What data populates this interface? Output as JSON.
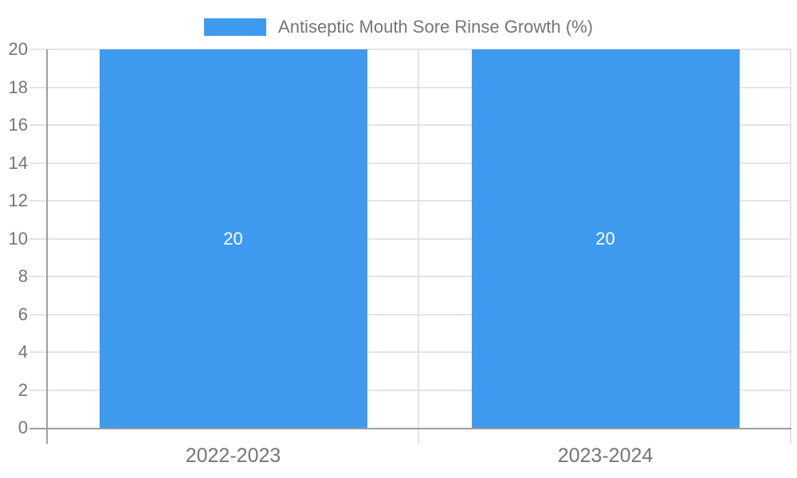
{
  "chart_data": {
    "type": "bar",
    "title": "Antiseptic Mouth Sore Rinse Growth (%)",
    "categories": [
      "2022-2023",
      "2023-2024"
    ],
    "series": [
      {
        "name": "Antiseptic Mouth Sore Rinse Growth (%)",
        "values": [
          20,
          20
        ]
      }
    ],
    "value_labels": [
      "20",
      "20"
    ],
    "xlabel": "",
    "ylabel": "",
    "ylim": [
      0,
      20
    ],
    "ytick_step": 2,
    "yticks": [
      0,
      2,
      4,
      6,
      8,
      10,
      12,
      14,
      16,
      18,
      20
    ],
    "grid": true,
    "legend_position": "top-center",
    "colors": {
      "bar": "#3D9AEF",
      "gridline": "#e4e4e4",
      "axis_line": "#9e9e9e",
      "tick_label": "#757575",
      "value_label": "#ffffff",
      "background": "#ffffff"
    }
  }
}
